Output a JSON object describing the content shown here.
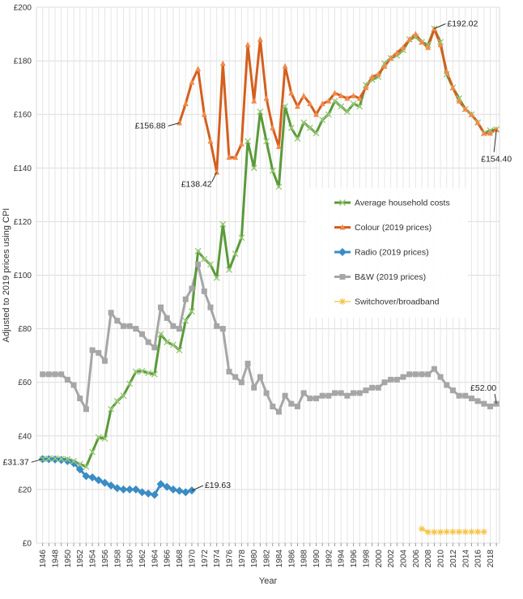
{
  "chart_data": {
    "type": "line",
    "xlabel": "Year",
    "ylabel": "Adjusted to 2019 prices using CPI",
    "xlim": [
      1945,
      2019.5
    ],
    "ylim": [
      0,
      200
    ],
    "grid": true,
    "legend_placement": "center-right",
    "y_ticks": [
      {
        "value": 0,
        "label": "£0"
      },
      {
        "value": 20,
        "label": "£20"
      },
      {
        "value": 40,
        "label": "£40"
      },
      {
        "value": 60,
        "label": "£60"
      },
      {
        "value": 80,
        "label": "£80"
      },
      {
        "value": 100,
        "label": "£100"
      },
      {
        "value": 120,
        "label": "£120"
      },
      {
        "value": 140,
        "label": "£140"
      },
      {
        "value": 160,
        "label": "£160"
      },
      {
        "value": 180,
        "label": "£180"
      },
      {
        "value": 200,
        "label": "£200"
      }
    ],
    "x_ticks": [
      "1946",
      "1948",
      "1950",
      "1952",
      "1954",
      "1956",
      "1958",
      "1960",
      "1962",
      "1964",
      "1966",
      "1968",
      "1970",
      "1972",
      "1974",
      "1976",
      "1978",
      "1980",
      "1982",
      "1984",
      "1986",
      "1988",
      "1990",
      "1992",
      "1994",
      "1996",
      "1998",
      "2000",
      "2002",
      "2004",
      "2006",
      "2008",
      "2010",
      "2012",
      "2014",
      "2016",
      "2018"
    ],
    "series": [
      {
        "name": "Average household costs",
        "color": "#5a9a3a",
        "marker": "x",
        "x": [
          1946,
          1947,
          1948,
          1949,
          1950,
          1951,
          1952,
          1953,
          1954,
          1955,
          1956,
          1957,
          1958,
          1959,
          1960,
          1961,
          1962,
          1963,
          1964,
          1965,
          1966,
          1967,
          1968,
          1969,
          1970,
          1971,
          1972,
          1973,
          1974,
          1975,
          1976,
          1977,
          1978,
          1979,
          1980,
          1981,
          1982,
          1983,
          1984,
          1985,
          1986,
          1987,
          1988,
          1989,
          1990,
          1991,
          1992,
          1993,
          1994,
          1995,
          1996,
          1997,
          1998,
          1999,
          2000,
          2001,
          2002,
          2003,
          2004,
          2005,
          2006,
          2007,
          2008,
          2009,
          2010,
          2011,
          2012,
          2013,
          2014,
          2015,
          2016,
          2017,
          2018,
          2019
        ],
        "y": [
          31.4,
          31.5,
          31.6,
          31.4,
          31.3,
          30.6,
          29.5,
          28.5,
          34,
          39.5,
          39,
          50,
          53,
          55,
          59.5,
          64,
          64.2,
          63.5,
          63,
          78,
          75,
          74,
          72,
          83,
          86.5,
          109,
          106,
          104,
          99,
          119,
          102,
          108,
          114,
          150,
          140,
          161,
          150,
          139,
          133,
          163,
          155,
          151,
          157,
          155,
          153,
          158,
          160,
          165,
          163,
          161,
          164,
          163,
          171,
          173,
          174,
          179,
          181,
          182,
          184,
          188,
          189,
          187,
          186,
          192,
          187,
          175,
          170,
          166,
          162,
          160,
          157,
          153,
          154,
          154.4
        ]
      },
      {
        "name": "Colour (2019 prices)",
        "color": "#d45f1e",
        "marker": "triangle",
        "x": [
          1968,
          1969,
          1970,
          1971,
          1972,
          1973,
          1974,
          1975,
          1976,
          1977,
          1978,
          1979,
          1980,
          1981,
          1982,
          1983,
          1984,
          1985,
          1986,
          1987,
          1988,
          1989,
          1990,
          1991,
          1992,
          1993,
          1994,
          1995,
          1996,
          1997,
          1998,
          1999,
          2000,
          2001,
          2002,
          2003,
          2004,
          2005,
          2006,
          2007,
          2008,
          2009,
          2010,
          2011,
          2012,
          2013,
          2014,
          2015,
          2016,
          2017,
          2018,
          2019
        ],
        "y": [
          156.88,
          164,
          172,
          177,
          160,
          150,
          138.42,
          179,
          144,
          144,
          149,
          186,
          165,
          188,
          166,
          155,
          148,
          178,
          168,
          163,
          167,
          164,
          160,
          164,
          165,
          168,
          167,
          166,
          167,
          166,
          170,
          174,
          175,
          178,
          181,
          183,
          185,
          188,
          190,
          187,
          185,
          192.02,
          186,
          176,
          170,
          165,
          162,
          160,
          157,
          153,
          153,
          154.4
        ]
      },
      {
        "name": "Radio (2019 prices)",
        "color": "#3a8cc4",
        "marker": "diamond",
        "x": [
          1946,
          1947,
          1948,
          1949,
          1950,
          1951,
          1952,
          1953,
          1954,
          1955,
          1956,
          1957,
          1958,
          1959,
          1960,
          1961,
          1962,
          1963,
          1964,
          1965,
          1966,
          1967,
          1968,
          1969,
          1970
        ],
        "y": [
          31.37,
          31.3,
          31.2,
          31,
          30.6,
          29.8,
          27.5,
          25,
          24.5,
          23.5,
          22.5,
          21.5,
          20.5,
          20,
          20,
          20,
          19,
          18.5,
          18,
          22,
          21,
          20,
          19.5,
          19,
          19.63
        ]
      },
      {
        "name": "B&W (2019 prices)",
        "color": "#a6a6a6",
        "marker": "square",
        "x": [
          1946,
          1947,
          1948,
          1949,
          1950,
          1951,
          1952,
          1953,
          1954,
          1955,
          1956,
          1957,
          1958,
          1959,
          1960,
          1961,
          1962,
          1963,
          1964,
          1965,
          1966,
          1967,
          1968,
          1969,
          1970,
          1971,
          1972,
          1973,
          1974,
          1975,
          1976,
          1977,
          1978,
          1979,
          1980,
          1981,
          1982,
          1983,
          1984,
          1985,
          1986,
          1987,
          1988,
          1989,
          1990,
          1991,
          1992,
          1993,
          1994,
          1995,
          1996,
          1997,
          1998,
          1999,
          2000,
          2001,
          2002,
          2003,
          2004,
          2005,
          2006,
          2007,
          2008,
          2009,
          2010,
          2011,
          2012,
          2013,
          2014,
          2015,
          2016,
          2017,
          2018,
          2019
        ],
        "y": [
          63,
          63,
          63,
          63,
          61,
          59,
          54,
          50,
          72,
          71,
          68,
          86,
          83,
          81,
          81,
          80,
          78,
          75,
          73,
          88,
          84,
          81,
          80,
          91,
          95,
          104,
          94,
          88,
          81,
          80,
          64,
          62,
          60,
          67,
          58,
          62,
          56,
          51,
          49,
          55,
          52,
          51,
          56,
          54,
          54,
          55,
          55,
          56,
          56,
          55,
          56,
          56,
          57,
          58,
          58,
          60,
          61,
          61,
          62,
          63,
          63,
          63,
          63,
          65,
          62,
          59,
          57,
          55,
          55,
          54,
          53,
          52,
          51,
          52
        ]
      },
      {
        "name": "Switchover/broadband",
        "color": "#f5c242",
        "marker": "star",
        "x": [
          2007,
          2008,
          2009,
          2010,
          2011,
          2012,
          2013,
          2014,
          2015,
          2016,
          2017
        ],
        "y": [
          5.3,
          4.1,
          4.1,
          4.1,
          4.2,
          4.2,
          4.2,
          4.2,
          4.2,
          4.2,
          4.2
        ]
      }
    ],
    "annotations": [
      {
        "label": "£192.02",
        "x": 2009,
        "y": 192.02,
        "anchor": "right"
      },
      {
        "label": "£156.88",
        "x": 1968,
        "y": 156.88,
        "anchor": "left"
      },
      {
        "label": "£138.42",
        "x": 1974,
        "y": 138.42,
        "anchor": "below-left"
      },
      {
        "label": "£154.40",
        "x": 2019,
        "y": 154.4,
        "anchor": "below"
      },
      {
        "label": "£52.00",
        "x": 2019,
        "y": 52,
        "anchor": "above"
      },
      {
        "label": "£31.37",
        "x": 1946,
        "y": 31.37,
        "anchor": "left"
      },
      {
        "label": "£19.63",
        "x": 1970,
        "y": 19.63,
        "anchor": "right"
      }
    ]
  }
}
